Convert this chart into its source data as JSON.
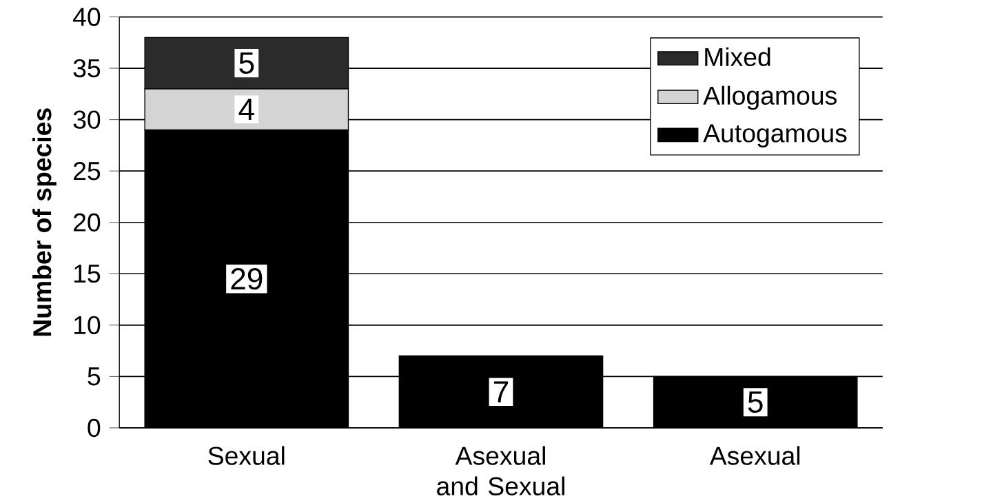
{
  "chart_data": {
    "type": "bar",
    "stacked": true,
    "ylabel": "Number of species",
    "categories": [
      "Sexual",
      "Asexual and Sexual",
      "Asexual"
    ],
    "series": [
      {
        "name": "Autogamous",
        "color": "#000000",
        "values": [
          29,
          7,
          5
        ]
      },
      {
        "name": "Allogamous",
        "color": "#d4d4d4",
        "values": [
          4,
          null,
          null
        ]
      },
      {
        "name": "Mixed",
        "color": "#2b2b2b",
        "values": [
          5,
          null,
          null
        ]
      }
    ],
    "ylim": [
      0,
      40
    ],
    "yticks": [
      0,
      5,
      10,
      15,
      20,
      25,
      30,
      35,
      40
    ],
    "grid": "y",
    "legend": "top right",
    "data_labels": true
  }
}
